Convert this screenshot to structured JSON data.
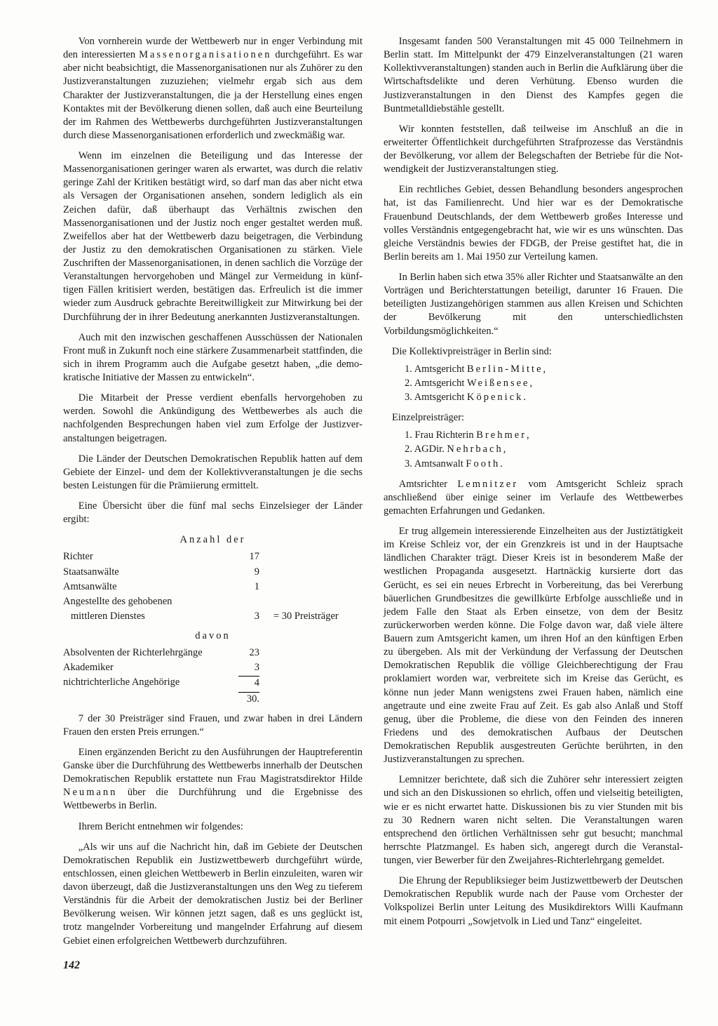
{
  "left": {
    "p1a": "Von vornherein wurde der Wettbewerb nur in enger Verbindung mit den interessierten ",
    "p1b": "Massen­organisationen",
    "p1c": " durchgeführt. Es war aber nicht beabsichtigt, die Massenorganisationen nur als Zuhörer zu den Justizveranstaltungen zuzuziehen; vielmehr ergab sich aus dem Charakter der Justizveranstaltungen, die ja der Herstellung eines engen Kontaktes mit der Be­völkerung dienen sollen, daß auch eine Beurteilung der im Rahmen des Wettbewerbs durchgeführten Justiz­veranstaltungen durch diese Massenorganisationen er­forderlich und zweckmäßig war.",
    "p2": "Wenn im einzelnen die Beteiligung und das Interesse der Massenorganisationen geringer waren als erwartet, was durch die relativ geringe Zahl der Kritiken be­stätigt wird, so darf man das aber nicht etwa als Ver­sagen der Organisationen ansehen, sondern lediglich als ein Zeichen dafür, daß überhaupt das Verhältnis zwischen den Massenorganisationen und der Justiz noch enger gestaltet werden muß. Zweifellos aber hat der Wettbewerb dazu beigetragen, die Verbindung der Justiz zu den demokratischen Organisationen zu stärken. Viele Zuschriften der Massenorganisationen, in denen sachlich die Vorzüge der Veranstaltungen hervorgehoben und Mängel zur Vermeidung in künf­tigen Fällen kritisiert werden, bestätigen das. Erfreu­lich ist die immer wieder zum Ausdruck gebrachte Be­reitwilligkeit zur Mitwirkung bei der Durchführung der in ihrer Bedeutung anerkannten Justizveranstal­tungen.",
    "p3": "Auch mit den inzwischen geschaffenen Ausschüssen der Nationalen Front muß in Zukunft noch eine stärkere Zusammenarbeit stattfinden, die sich in ihrem Programm auch die Aufgabe gesetzt haben, „die demo­kratische Initiative der Massen zu entwickeln“.",
    "p4": "Die Mitarbeit der Presse verdient ebenfalls hervor­gehoben zu werden. Sowohl die Ankündigung des Wettbewerbes als auch die nachfolgenden Be­sprechungen haben viel zum Erfolge der Justizver­anstaltungen beigetragen.",
    "p5": "Die Länder der Deutschen Demokratischen Republik hatten auf dem Gebiete der Einzel- und dem der Kol­lektivveranstaltungen je die sechs besten Leistungen für die Prämiierung ermittelt.",
    "p6": "Eine Übersicht über die fünf mal sechs Einzelsieger der Länder ergibt:",
    "tbl1": {
      "title": "Anzahl der",
      "rows": [
        {
          "label": "Richter",
          "val": "17"
        },
        {
          "label": "Staatsanwälte",
          "val": "9"
        },
        {
          "label": "Amtsanwälte",
          "val": "1"
        },
        {
          "label": "Angestellte des gehobenen",
          "val": ""
        },
        {
          "label": "   mittleren Dienstes",
          "val": "3"
        }
      ],
      "sum": "= 30 Preisträger"
    },
    "tbl2": {
      "title": "davon",
      "rows": [
        {
          "label": "Absolventen der Richterlehrgänge",
          "val": "23"
        },
        {
          "label": "Akademiker",
          "val": "3"
        },
        {
          "label": "nichtrichterliche Angehörige",
          "val": "4"
        }
      ],
      "sum": "30."
    },
    "p7": "7 der 30 Preisträger sind Frauen, und zwar haben in drei Ländern Frauen den ersten Preis errungen.“",
    "p8a": "Einen ergänzenden Bericht zu den Ausführungen der Hauptreferentin Ganske über die Durchführung des Wettbewerbs innerhalb der Deutschen Demokra­tischen Republik erstattete nun Frau Magistratsdirektor Hilde ",
    "p8b": "Neumann",
    "p8c": " über die Durchführung und die Ergebnisse des Wettbewerbs in Berlin.",
    "p9": "Ihrem Bericht entnehmen wir folgendes:",
    "p10": "„Als wir uns auf die Nachricht hin, daß im Gebiete der Deutschen Demokratischen Republik ein Justiz­wettbewerb durchgeführt würde, entschlossen, einen gleichen Wettbewerb in Berlin einzuleiten, waren wir davon überzeugt, daß die Justizveranstaltungen uns den Weg zu tieferem Verständnis für die Arbeit der demokratischen Justiz bei der Berliner Bevölkerung weisen. Wir können jetzt sagen, daß es uns geglückt ist, trotz mangelnder Vorbereitung und mangelnder Erfahrung auf diesem Gebiet einen erfolgreichen Wett­bewerb durchzuführen.",
    "pagenum": "142"
  },
  "right": {
    "p1": "Insgesamt fanden 500 Veranstaltungen mit 45 000 Teilnehmern in Berlin statt. Im Mittelpunkt der 479 Einzelveranstaltungen (21 waren Kollektivver­anstaltungen) standen auch in Berlin die Aufklärung über die Wirtschaftsdelikte und deren Verhütung. Ebenso wurden die Justizveranstaltungen in den Dienst des Kampfes gegen die Buntmetalldiebstähle gestellt.",
    "p2": "Wir konnten feststellen, daß teilweise im Anschluß an die in erweiterter Öffentlichkeit durchgeführten Strafprozesse das Verständnis der Bevölkerung, vor allem der Belegschaften der Betriebe für die Not­wendigkeit der Justizveranstaltungen stieg.",
    "p3": "Ein rechtliches Gebiet, dessen Behandlung besonders angesprochen hat, ist das Familienrecht. Und hier war es der Demokratische Frauenbund Deutschlands, der dem Wettbewerb großes Interesse und volles Ver­ständnis entgegengebracht hat, wie wir es uns wünschten. Das gleiche Verständnis bewies der FDGB, der Preise gestiftet hat, die in Berlin bereits am 1. Mai 1950 zur Verteilung kamen.",
    "p4": "In Berlin haben sich etwa 35% aller Richter und Staatsanwälte an den Vorträgen und Berichterstattun­gen beteiligt, darunter 16 Frauen. Die beteiligten Justizangehörigen stammen aus allen Kreisen und Schichten der Bevölkerung mit den unterschiedlichsten Vorbildungsmöglichkeiten.“",
    "h1": "Die Kollektivpreisträger in Berlin sind:",
    "list1": [
      {
        "pre": "1. Amtsgericht ",
        "sp": "Berlin-Mitte",
        "post": ","
      },
      {
        "pre": "2. Amtsgericht ",
        "sp": "Weißensee",
        "post": ","
      },
      {
        "pre": "3. Amtsgericht ",
        "sp": "Köpenick",
        "post": "."
      }
    ],
    "h2": "Einzelpreisträger:",
    "list2": [
      {
        "pre": "1. Frau Richterin ",
        "sp": "Brehmer",
        "post": ","
      },
      {
        "pre": "2. AGDir. ",
        "sp": "Nehrbach",
        "post": ","
      },
      {
        "pre": "3. Amtsanwalt ",
        "sp": "Footh",
        "post": "."
      }
    ],
    "p5a": "Amtsrichter ",
    "p5b": "Lemnitzer",
    "p5c": " vom Amtsgericht Schleiz sprach anschließend über einige seiner im Verlaufe des Wettbewerbes gemachten Erfahrungen und Gedanken.",
    "p6": "Er trug allgemein interessierende Einzelheiten aus der Justiztätigkeit im Kreise Schleiz vor, der ein Grenzkreis ist und in der Hauptsache ländlichen Cha­rakter trägt. Dieser Kreis ist in besonderem Maße der westlichen Propaganda ausgesetzt. Hartnäckig kur­sierte dort das Gerücht, es sei ein neues Erbrecht in Vorbereitung, das bei Vererbung bäuerlichen Grund­besitzes die gewillkürte Erbfolge ausschließe und in jedem Falle den Staat als Erben einsetze, von dem der Besitz zurückerworben werden könne. Die Folge davon war, daß viele ältere Bauern zum Amtsgericht kamen, um ihren Hof an den künftigen Erben zu übergeben. Als mit der Verkündung der Verfassung der Deut­schen Demokratischen Republik die völlige Gleich­berechtigung der Frau proklamiert worden war, ver­breitete sich im Kreise das Gerücht, es könne nun jeder Mann wenigstens zwei Frauen haben, nämlich eine angetraute und eine zweite Frau auf Zeit. Es gab also Anlaß und Stoff genug, über die Probleme, die diese von den Feinden des inneren Friedens und des demo­kratischen Aufbaus der Deutschen Demokratischen Republik ausgestreuten Gerüchte berührten, in den Justizveranstaltungen zu sprechen.",
    "p7": "Lemnitzer berichtete, daß sich die Zuhörer sehr inter­essiert zeigten und sich an den Diskussionen so ehrlich, offen und vielseitig beteiligten, wie er es nicht er­wartet hatte. Diskussionen bis zu vier Stunden mit bis zu 30 Rednern waren nicht selten. Die Veranstal­tungen waren entsprechend den örtlichen Verhält­nissen sehr gut besucht; manchmal herrschte Platz­mangel. Es haben sich, angeregt durch die Veranstal­tungen, vier Bewerber für den Zweijahres-Richter­lehrgang gemeldet.",
    "p8": "Die Ehrung der Republiksieger beim Justizwett­bewerb der Deutschen Demokratischen Republik wurde nach der Pause vom Orchester der Volkspolizei Berlin unter Leitung des Musikdirektors Willi Kaufmann mit einem Potpourri „Sowjetvolk in Lied und Tanz“ ein­geleitet."
  }
}
